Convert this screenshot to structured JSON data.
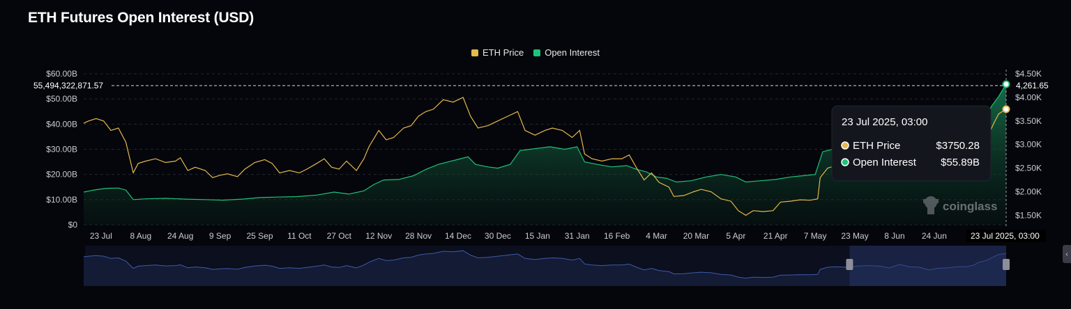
{
  "title": "ETH Futures Open Interest (USD)",
  "legend": {
    "eth_price_label": "ETH Price",
    "open_interest_label": "Open Interest"
  },
  "colors": {
    "background": "#05060b",
    "eth_price": "#e6b84e",
    "open_interest": "#1fc27a",
    "open_interest_fill": "#0e5a3a",
    "navigator_line": "#3f5aa8",
    "navigator_fill": "#121a33",
    "navigator_selection": "#1e2a4d",
    "tooltip_bg": "#14161d",
    "grid": "#23262f",
    "axis_text": "#c9ccd3"
  },
  "crosshair": {
    "left_readout": "55,494,322,871.57",
    "right_readout": "4,261.65",
    "x_readout": "23 Jul 2025, 03:00"
  },
  "tooltip": {
    "date": "23 Jul 2025, 03:00",
    "eth_label": "ETH Price",
    "eth_value": "$3750.28",
    "oi_label": "Open Interest",
    "oi_value": "$55.89B"
  },
  "watermark": "coinglass",
  "navigator_selection_range": [
    0.83,
    1.0
  ],
  "chart_data": {
    "type": "line",
    "title": "ETH Futures Open Interest (USD)",
    "x_tick_labels": [
      "23 Jul",
      "8 Aug",
      "24 Aug",
      "9 Sep",
      "25 Sep",
      "11 Oct",
      "27 Oct",
      "12 Nov",
      "28 Nov",
      "14 Dec",
      "30 Dec",
      "15 Jan",
      "31 Jan",
      "16 Feb",
      "4 Mar",
      "20 Mar",
      "5 Apr",
      "21 Apr",
      "7 May",
      "23 May",
      "8 Jun",
      "24 Jun"
    ],
    "x_range": [
      "2024-07-16",
      "2025-07-23"
    ],
    "left_axis": {
      "ticks": [
        "$0",
        "$10.00B",
        "$20.00B",
        "$30.00B",
        "$40.00B",
        "$50.00B",
        "$60.00B"
      ],
      "range": [
        0,
        60
      ],
      "unit": "B USD"
    },
    "right_axis": {
      "ticks": [
        "$1.50K",
        "$2.00K",
        "$2.50K",
        "$3.00K",
        "$3.50K",
        "$4.00K",
        "$4.50K"
      ],
      "range": [
        1300,
        4500
      ]
    },
    "grid": true,
    "legend_position": "top-center",
    "series": [
      {
        "name": "ETH Price",
        "axis": "right",
        "points": [
          [
            "2024-07-16",
            3450
          ],
          [
            "2024-07-18",
            3500
          ],
          [
            "2024-07-21",
            3550
          ],
          [
            "2024-07-24",
            3500
          ],
          [
            "2024-07-27",
            3300
          ],
          [
            "2024-07-30",
            3350
          ],
          [
            "2024-08-02",
            3050
          ],
          [
            "2024-08-05",
            2400
          ],
          [
            "2024-08-07",
            2600
          ],
          [
            "2024-08-10",
            2650
          ],
          [
            "2024-08-14",
            2700
          ],
          [
            "2024-08-18",
            2620
          ],
          [
            "2024-08-22",
            2650
          ],
          [
            "2024-08-24",
            2720
          ],
          [
            "2024-08-27",
            2450
          ],
          [
            "2024-08-30",
            2520
          ],
          [
            "2024-09-03",
            2450
          ],
          [
            "2024-09-06",
            2300
          ],
          [
            "2024-09-09",
            2350
          ],
          [
            "2024-09-12",
            2380
          ],
          [
            "2024-09-16",
            2320
          ],
          [
            "2024-09-19",
            2480
          ],
          [
            "2024-09-23",
            2620
          ],
          [
            "2024-09-27",
            2680
          ],
          [
            "2024-09-30",
            2600
          ],
          [
            "2024-10-03",
            2400
          ],
          [
            "2024-10-07",
            2450
          ],
          [
            "2024-10-11",
            2400
          ],
          [
            "2024-10-14",
            2480
          ],
          [
            "2024-10-18",
            2600
          ],
          [
            "2024-10-21",
            2700
          ],
          [
            "2024-10-24",
            2520
          ],
          [
            "2024-10-27",
            2480
          ],
          [
            "2024-10-30",
            2650
          ],
          [
            "2024-11-03",
            2450
          ],
          [
            "2024-11-06",
            2700
          ],
          [
            "2024-11-08",
            2950
          ],
          [
            "2024-11-12",
            3300
          ],
          [
            "2024-11-15",
            3100
          ],
          [
            "2024-11-18",
            3150
          ],
          [
            "2024-11-22",
            3350
          ],
          [
            "2024-11-25",
            3400
          ],
          [
            "2024-11-28",
            3600
          ],
          [
            "2024-12-01",
            3700
          ],
          [
            "2024-12-04",
            3750
          ],
          [
            "2024-12-08",
            3950
          ],
          [
            "2024-12-12",
            3900
          ],
          [
            "2024-12-16",
            4000
          ],
          [
            "2024-12-19",
            3600
          ],
          [
            "2024-12-22",
            3350
          ],
          [
            "2024-12-26",
            3400
          ],
          [
            "2024-12-30",
            3500
          ],
          [
            "2025-01-03",
            3600
          ],
          [
            "2025-01-07",
            3700
          ],
          [
            "2025-01-10",
            3300
          ],
          [
            "2025-01-14",
            3200
          ],
          [
            "2025-01-18",
            3300
          ],
          [
            "2025-01-21",
            3350
          ],
          [
            "2025-01-25",
            3300
          ],
          [
            "2025-01-29",
            3150
          ],
          [
            "2025-02-01",
            3300
          ],
          [
            "2025-02-03",
            2800
          ],
          [
            "2025-02-06",
            2700
          ],
          [
            "2025-02-10",
            2650
          ],
          [
            "2025-02-14",
            2700
          ],
          [
            "2025-02-18",
            2700
          ],
          [
            "2025-02-21",
            2780
          ],
          [
            "2025-02-24",
            2500
          ],
          [
            "2025-02-27",
            2250
          ],
          [
            "2025-03-02",
            2400
          ],
          [
            "2025-03-05",
            2200
          ],
          [
            "2025-03-09",
            2100
          ],
          [
            "2025-03-11",
            1900
          ],
          [
            "2025-03-15",
            1920
          ],
          [
            "2025-03-19",
            2000
          ],
          [
            "2025-03-22",
            2050
          ],
          [
            "2025-03-26",
            2000
          ],
          [
            "2025-03-30",
            1850
          ],
          [
            "2025-04-03",
            1800
          ],
          [
            "2025-04-06",
            1600
          ],
          [
            "2025-04-09",
            1500
          ],
          [
            "2025-04-12",
            1600
          ],
          [
            "2025-04-16",
            1580
          ],
          [
            "2025-04-20",
            1600
          ],
          [
            "2025-04-23",
            1780
          ],
          [
            "2025-04-27",
            1800
          ],
          [
            "2025-05-01",
            1830
          ],
          [
            "2025-05-05",
            1820
          ],
          [
            "2025-05-08",
            1850
          ],
          [
            "2025-05-09",
            2300
          ],
          [
            "2025-05-12",
            2500
          ],
          [
            "2025-05-15",
            2550
          ],
          [
            "2025-05-20",
            2500
          ],
          [
            "2025-05-24",
            2600
          ],
          [
            "2025-05-28",
            2650
          ],
          [
            "2025-06-02",
            2600
          ],
          [
            "2025-06-06",
            2450
          ],
          [
            "2025-06-10",
            2750
          ],
          [
            "2025-06-14",
            2550
          ],
          [
            "2025-06-18",
            2500
          ],
          [
            "2025-06-22",
            2250
          ],
          [
            "2025-06-25",
            2400
          ],
          [
            "2025-06-30",
            2450
          ],
          [
            "2025-07-03",
            2550
          ],
          [
            "2025-07-07",
            2550
          ],
          [
            "2025-07-10",
            2700
          ],
          [
            "2025-07-12",
            2950
          ],
          [
            "2025-07-15",
            3100
          ],
          [
            "2025-07-18",
            3450
          ],
          [
            "2025-07-20",
            3650
          ],
          [
            "2025-07-23",
            3750.28
          ]
        ]
      },
      {
        "name": "Open Interest",
        "axis": "left",
        "unit": "B USD",
        "points": [
          [
            "2024-07-16",
            13
          ],
          [
            "2024-07-20",
            13.8
          ],
          [
            "2024-07-25",
            14.5
          ],
          [
            "2024-07-30",
            14.6
          ],
          [
            "2024-08-02",
            13.8
          ],
          [
            "2024-08-05",
            10
          ],
          [
            "2024-08-10",
            10.3
          ],
          [
            "2024-08-18",
            10.5
          ],
          [
            "2024-08-26",
            10.2
          ],
          [
            "2024-09-03",
            10.0
          ],
          [
            "2024-09-10",
            9.8
          ],
          [
            "2024-09-18",
            10.2
          ],
          [
            "2024-09-25",
            10.8
          ],
          [
            "2024-10-02",
            11
          ],
          [
            "2024-10-10",
            11.2
          ],
          [
            "2024-10-18",
            11.8
          ],
          [
            "2024-10-25",
            13
          ],
          [
            "2024-10-31",
            12.2
          ],
          [
            "2024-11-06",
            13.5
          ],
          [
            "2024-11-10",
            16
          ],
          [
            "2024-11-14",
            17.8
          ],
          [
            "2024-11-20",
            18
          ],
          [
            "2024-11-26",
            19.5
          ],
          [
            "2024-12-01",
            22
          ],
          [
            "2024-12-06",
            24
          ],
          [
            "2024-12-10",
            25
          ],
          [
            "2024-12-14",
            26
          ],
          [
            "2024-12-18",
            27
          ],
          [
            "2024-12-21",
            24
          ],
          [
            "2024-12-26",
            23
          ],
          [
            "2024-12-30",
            22.5
          ],
          [
            "2025-01-04",
            24
          ],
          [
            "2025-01-08",
            29.5
          ],
          [
            "2025-01-12",
            30
          ],
          [
            "2025-01-16",
            30.5
          ],
          [
            "2025-01-20",
            31
          ],
          [
            "2025-01-26",
            30
          ],
          [
            "2025-01-31",
            31
          ],
          [
            "2025-02-03",
            25
          ],
          [
            "2025-02-08",
            24
          ],
          [
            "2025-02-14",
            23
          ],
          [
            "2025-02-20",
            23.5
          ],
          [
            "2025-02-24",
            22
          ],
          [
            "2025-02-28",
            21
          ],
          [
            "2025-03-04",
            19
          ],
          [
            "2025-03-08",
            18.5
          ],
          [
            "2025-03-12",
            17
          ],
          [
            "2025-03-18",
            17.5
          ],
          [
            "2025-03-24",
            19
          ],
          [
            "2025-03-30",
            20
          ],
          [
            "2025-04-05",
            19
          ],
          [
            "2025-04-09",
            17
          ],
          [
            "2025-04-15",
            17.5
          ],
          [
            "2025-04-21",
            18
          ],
          [
            "2025-04-27",
            19
          ],
          [
            "2025-05-02",
            19.5
          ],
          [
            "2025-05-07",
            20
          ],
          [
            "2025-05-10",
            29
          ],
          [
            "2025-05-14",
            30
          ],
          [
            "2025-05-18",
            29
          ],
          [
            "2025-05-23",
            30
          ],
          [
            "2025-06-10",
            31
          ],
          [
            "2025-06-24",
            30
          ],
          [
            "2025-07-05",
            31
          ],
          [
            "2025-07-10",
            34
          ],
          [
            "2025-07-14",
            40
          ],
          [
            "2025-07-17",
            47
          ],
          [
            "2025-07-20",
            51
          ],
          [
            "2025-07-23",
            55.89
          ]
        ]
      }
    ]
  }
}
